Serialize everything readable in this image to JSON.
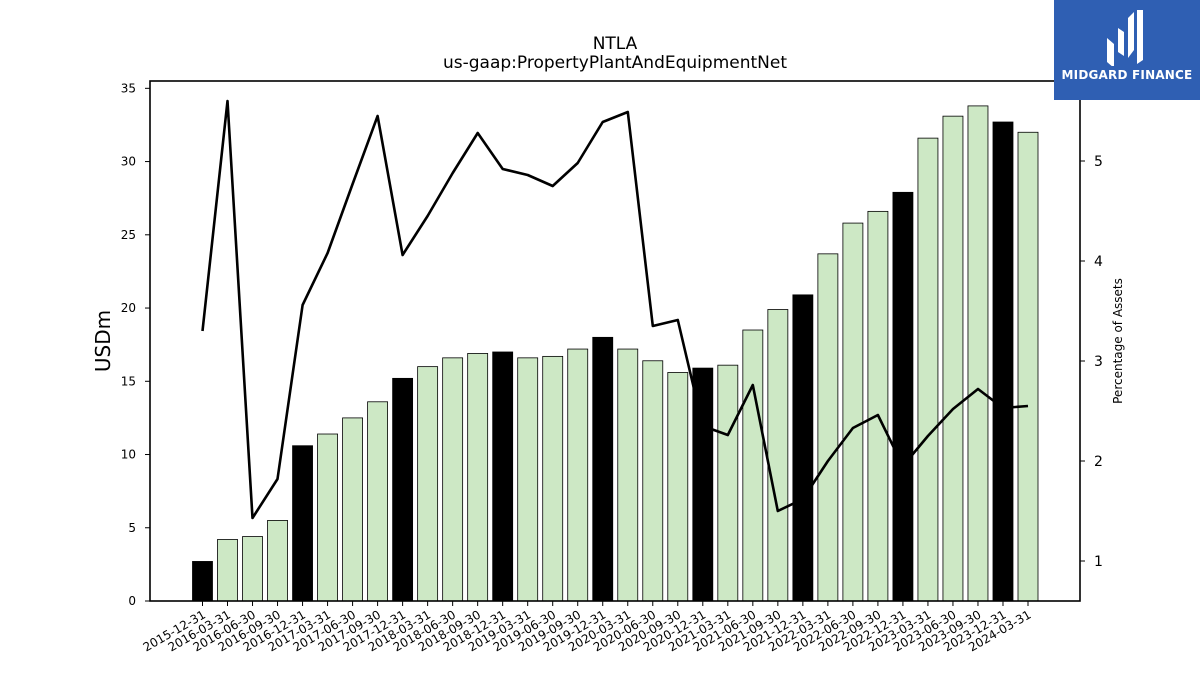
{
  "chart_data": {
    "type": "bar",
    "title": "NTLA",
    "subtitle": "us-gaap:PropertyPlantAndEquipmentNet",
    "ylabel": "USDm",
    "ylabel_right": "Percentage of Assets",
    "ylim": [
      0,
      35.5
    ],
    "ylim_right": [
      0.6,
      5.8
    ],
    "yticks": [
      0,
      5,
      10,
      15,
      20,
      25,
      30,
      35
    ],
    "yticks_right": [
      1,
      2,
      3,
      4,
      5
    ],
    "categories": [
      "2015-12-31",
      "2016-03-31",
      "2016-06-30",
      "2016-09-30",
      "2016-12-31",
      "2017-03-31",
      "2017-06-30",
      "2017-09-30",
      "2017-12-31",
      "2018-03-31",
      "2018-06-30",
      "2018-09-30",
      "2018-12-31",
      "2019-03-31",
      "2019-06-30",
      "2019-09-30",
      "2019-12-31",
      "2020-03-31",
      "2020-06-30",
      "2020-09-30",
      "2020-12-31",
      "2021-03-31",
      "2021-06-30",
      "2021-09-30",
      "2021-12-31",
      "2022-03-31",
      "2022-06-30",
      "2022-09-30",
      "2022-12-31",
      "2023-03-31",
      "2023-06-30",
      "2023-09-30",
      "2023-12-31",
      "2024-03-31"
    ],
    "series": [
      {
        "values": [
          2.7,
          4.2,
          4.4,
          5.5,
          10.6,
          11.4,
          12.5,
          13.6,
          15.2,
          16.0,
          16.6,
          16.9,
          17.0,
          16.6,
          16.7,
          17.2,
          18.0,
          17.2,
          16.4,
          15.6,
          15.9,
          16.1,
          18.5,
          19.9,
          20.9,
          23.7,
          25.8,
          26.6,
          27.9,
          31.6,
          33.1,
          33.8,
          32.7,
          32.0
        ],
        "highlight": [
          true,
          false,
          false,
          false,
          true,
          false,
          false,
          false,
          true,
          false,
          false,
          false,
          true,
          false,
          false,
          false,
          true,
          false,
          false,
          false,
          true,
          false,
          false,
          false,
          true,
          false,
          false,
          false,
          true,
          false,
          false,
          false,
          true,
          false
        ]
      },
      {
        "axis": "right",
        "type": "line",
        "values": [
          3.3,
          5.6,
          1.43,
          1.82,
          3.56,
          4.08,
          4.77,
          5.45,
          4.06,
          4.45,
          4.88,
          5.28,
          4.92,
          4.86,
          4.75,
          4.98,
          5.39,
          5.49,
          3.35,
          3.41,
          2.35,
          2.26,
          2.76,
          1.5,
          1.62,
          2.0,
          2.33,
          2.46,
          1.95,
          2.25,
          2.52,
          2.72,
          2.53,
          2.55
        ]
      }
    ],
    "colors": {
      "bar": "#cde8c5",
      "bar_highlight": "#000000",
      "line": "#000000",
      "edge": "#000000"
    },
    "grid": false
  },
  "brand": {
    "name": "MIDGARD FINANCE",
    "color": "#2f5fb3"
  }
}
